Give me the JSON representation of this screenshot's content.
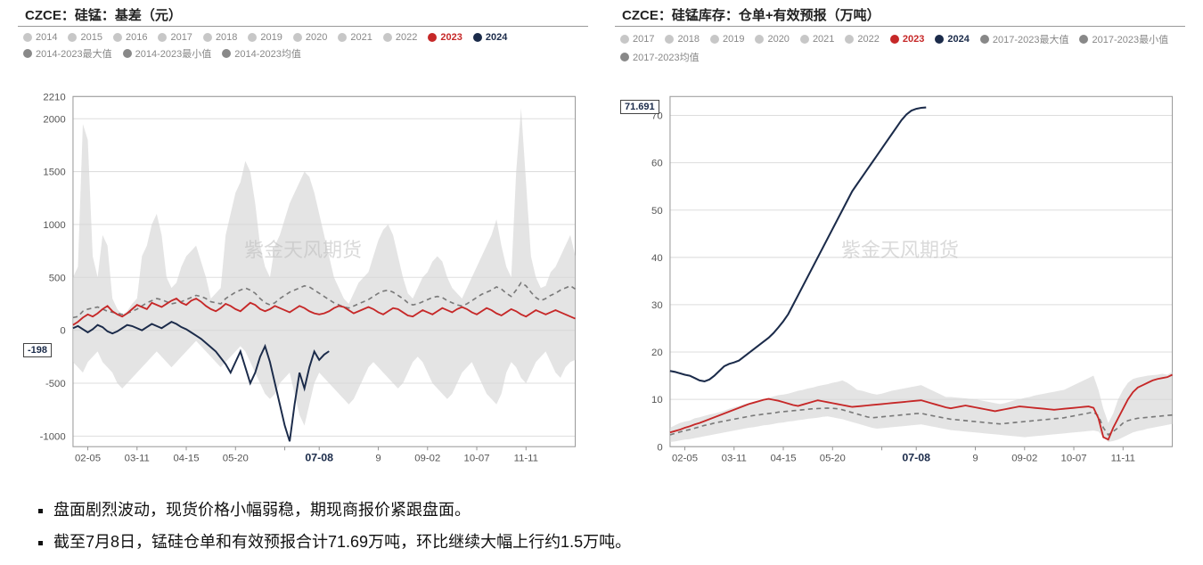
{
  "watermark": "紫金天风期货",
  "bullets": [
    "盘面剧烈波动，现货价格小幅弱稳，期现商报价紧跟盘面。",
    "截至7月8日，锰硅仓单和有效预报合计71.69万吨，环比继续大幅上行约1.5万吨。"
  ],
  "chart_left": {
    "title": "CZCE：硅锰：基差（元）",
    "type": "line",
    "background_color": "#ffffff",
    "grid_color": "#dddddd",
    "axis_color": "#999999",
    "tick_fontsize": 11,
    "ylim": [
      -1100,
      2210
    ],
    "yticks": [
      -1000,
      -500,
      0,
      500,
      1000,
      1500,
      2000,
      2210
    ],
    "xticks_idx": [
      3,
      13,
      23,
      33,
      43,
      50,
      62,
      72,
      82,
      92
    ],
    "xtick_labels": [
      "02-05",
      "03-11",
      "04-15",
      "05-20",
      "",
      "07-08",
      "9",
      "09-02",
      "10-07",
      "11-11"
    ],
    "xtick_bold_idx": 5,
    "legend_inactive_color": "#c7c7c7",
    "legend": [
      {
        "label": "2014",
        "color": "#c7c7c7",
        "active": false
      },
      {
        "label": "2015",
        "color": "#c7c7c7",
        "active": false
      },
      {
        "label": "2016",
        "color": "#c7c7c7",
        "active": false
      },
      {
        "label": "2017",
        "color": "#c7c7c7",
        "active": false
      },
      {
        "label": "2018",
        "color": "#c7c7c7",
        "active": false
      },
      {
        "label": "2019",
        "color": "#c7c7c7",
        "active": false
      },
      {
        "label": "2020",
        "color": "#c7c7c7",
        "active": false
      },
      {
        "label": "2021",
        "color": "#c7c7c7",
        "active": false
      },
      {
        "label": "2022",
        "color": "#c7c7c7",
        "active": false
      },
      {
        "label": "2023",
        "color": "#c62828",
        "active": true
      },
      {
        "label": "2024",
        "color": "#1b2b4a",
        "active": true
      },
      {
        "label": "2014-2023最大值",
        "color": "#888888",
        "active": false
      },
      {
        "label": "2014-2023最小值",
        "color": "#888888",
        "active": false
      },
      {
        "label": "2014-2023均值",
        "color": "#888888",
        "active": false
      }
    ],
    "callout_left": {
      "value": "-198",
      "y": -198
    },
    "n_points": 103,
    "band": {
      "fill": "#d6d6d6",
      "opacity": 0.65,
      "hi": [
        500,
        600,
        1950,
        1800,
        700,
        500,
        900,
        800,
        300,
        200,
        150,
        180,
        250,
        300,
        700,
        800,
        1000,
        1100,
        900,
        500,
        400,
        450,
        600,
        700,
        750,
        800,
        650,
        500,
        300,
        350,
        400,
        900,
        1100,
        1300,
        1400,
        1600,
        1500,
        1200,
        800,
        600,
        500,
        800,
        900,
        1050,
        1200,
        1300,
        1400,
        1500,
        1450,
        1300,
        1100,
        900,
        700,
        500,
        400,
        300,
        250,
        350,
        450,
        500,
        550,
        700,
        850,
        950,
        1000,
        900,
        700,
        500,
        350,
        300,
        400,
        500,
        550,
        650,
        700,
        650,
        500,
        400,
        350,
        300,
        400,
        500,
        600,
        700,
        800,
        900,
        1050,
        800,
        600,
        500,
        1500,
        2100,
        1400,
        700,
        500,
        400,
        420,
        550,
        600,
        700,
        800,
        900,
        700
      ],
      "lo": [
        -300,
        -350,
        -400,
        -300,
        -250,
        -200,
        -300,
        -350,
        -400,
        -500,
        -550,
        -500,
        -450,
        -400,
        -350,
        -300,
        -250,
        -200,
        -250,
        -300,
        -350,
        -300,
        -250,
        -200,
        -150,
        -100,
        -150,
        -200,
        -250,
        -300,
        -350,
        -300,
        -250,
        -200,
        -150,
        -200,
        -300,
        -400,
        -500,
        -600,
        -650,
        -600,
        -500,
        -450,
        -400,
        -600,
        -800,
        -900,
        -700,
        -500,
        -400,
        -450,
        -500,
        -550,
        -600,
        -650,
        -700,
        -650,
        -550,
        -450,
        -350,
        -300,
        -350,
        -400,
        -450,
        -500,
        -550,
        -500,
        -400,
        -300,
        -250,
        -300,
        -400,
        -500,
        -550,
        -600,
        -650,
        -600,
        -500,
        -400,
        -350,
        -300,
        -400,
        -500,
        -600,
        -650,
        -700,
        -600,
        -400,
        -300,
        -350,
        -450,
        -500,
        -400,
        -300,
        -250,
        -200,
        -300,
        -400,
        -450,
        -350,
        -300,
        -280
      ]
    },
    "mean_line": {
      "color": "#7a7a7a",
      "dash": "5 4",
      "width": 1.6,
      "y": [
        120,
        130,
        180,
        200,
        210,
        220,
        200,
        180,
        170,
        160,
        150,
        160,
        180,
        200,
        230,
        260,
        280,
        300,
        290,
        270,
        250,
        260,
        270,
        290,
        310,
        330,
        320,
        300,
        270,
        260,
        250,
        300,
        330,
        360,
        380,
        400,
        380,
        350,
        300,
        260,
        240,
        260,
        300,
        330,
        360,
        380,
        400,
        420,
        410,
        380,
        350,
        320,
        290,
        260,
        240,
        220,
        210,
        230,
        250,
        270,
        290,
        320,
        350,
        370,
        380,
        360,
        330,
        300,
        260,
        240,
        250,
        270,
        290,
        310,
        320,
        310,
        280,
        260,
        240,
        230,
        250,
        280,
        310,
        340,
        360,
        380,
        410,
        390,
        350,
        320,
        380,
        450,
        420,
        360,
        310,
        280,
        300,
        330,
        350,
        380,
        400,
        420,
        390
      ]
    },
    "series_2023": {
      "color": "#c62828",
      "width": 1.8,
      "y": [
        50,
        80,
        120,
        150,
        130,
        160,
        200,
        230,
        180,
        150,
        130,
        160,
        200,
        240,
        220,
        200,
        260,
        240,
        220,
        250,
        280,
        300,
        260,
        240,
        280,
        300,
        270,
        230,
        200,
        180,
        210,
        250,
        230,
        200,
        180,
        220,
        260,
        240,
        200,
        180,
        200,
        230,
        210,
        190,
        170,
        200,
        230,
        210,
        180,
        160,
        150,
        160,
        180,
        210,
        230,
        220,
        190,
        160,
        180,
        200,
        220,
        200,
        170,
        150,
        180,
        210,
        200,
        170,
        140,
        130,
        160,
        190,
        170,
        150,
        180,
        210,
        190,
        170,
        200,
        220,
        200,
        170,
        150,
        180,
        210,
        190,
        160,
        140,
        170,
        200,
        180,
        150,
        130,
        160,
        190,
        170,
        150,
        170,
        190,
        170,
        150,
        130,
        110
      ]
    },
    "series_2024": {
      "color": "#1b2b4a",
      "width": 1.9,
      "y": [
        20,
        40,
        10,
        -20,
        10,
        50,
        30,
        -10,
        -30,
        -10,
        20,
        50,
        40,
        20,
        0,
        30,
        60,
        40,
        20,
        50,
        80,
        60,
        30,
        10,
        -20,
        -50,
        -80,
        -120,
        -160,
        -200,
        -260,
        -320,
        -400,
        -300,
        -200,
        -350,
        -500,
        -400,
        -250,
        -150,
        -300,
        -500,
        -700,
        -900,
        -1050,
        -700,
        -400,
        -550,
        -350,
        -200,
        -280,
        -230,
        -198
      ],
      "last_idx": 52
    }
  },
  "chart_right": {
    "title": "CZCE：硅锰库存：仓单+有效预报（万吨）",
    "type": "line",
    "background_color": "#ffffff",
    "grid_color": "#dddddd",
    "axis_color": "#999999",
    "tick_fontsize": 11,
    "ylim": [
      0,
      74
    ],
    "yticks": [
      0,
      10,
      20,
      30,
      40,
      50,
      60,
      70
    ],
    "xticks_idx": [
      3,
      13,
      23,
      33,
      43,
      50,
      62,
      72,
      82,
      92
    ],
    "xtick_labels": [
      "02-05",
      "03-11",
      "04-15",
      "05-20",
      "",
      "07-08",
      "9",
      "09-02",
      "10-07",
      "11-11"
    ],
    "xtick_bold_idx": 5,
    "legend_inactive_color": "#c7c7c7",
    "legend": [
      {
        "label": "2017",
        "color": "#c7c7c7",
        "active": false
      },
      {
        "label": "2018",
        "color": "#c7c7c7",
        "active": false
      },
      {
        "label": "2019",
        "color": "#c7c7c7",
        "active": false
      },
      {
        "label": "2020",
        "color": "#c7c7c7",
        "active": false
      },
      {
        "label": "2021",
        "color": "#c7c7c7",
        "active": false
      },
      {
        "label": "2022",
        "color": "#c7c7c7",
        "active": false
      },
      {
        "label": "2023",
        "color": "#c62828",
        "active": true
      },
      {
        "label": "2024",
        "color": "#1b2b4a",
        "active": true
      },
      {
        "label": "2017-2023最大值",
        "color": "#888888",
        "active": false
      },
      {
        "label": "2017-2023最小值",
        "color": "#888888",
        "active": false
      },
      {
        "label": "2017-2023均值",
        "color": "#888888",
        "active": false
      }
    ],
    "callout_left": {
      "value": "71.691",
      "y": 71.691
    },
    "n_points": 103,
    "band": {
      "fill": "#d6d6d6",
      "opacity": 0.65,
      "hi": [
        4,
        4.5,
        5,
        5.3,
        5.5,
        6,
        6.2,
        6.5,
        6.8,
        7,
        7.3,
        7.6,
        8,
        8.3,
        8.6,
        9,
        9.2,
        9.5,
        9.8,
        10,
        10.3,
        10.6,
        10.9,
        11,
        11.2,
        11.5,
        11.8,
        12,
        12.3,
        12.5,
        12.8,
        13,
        13.2,
        13.5,
        13.7,
        14,
        13.5,
        12.8,
        12,
        11.8,
        11.5,
        11.2,
        11,
        11.2,
        11.5,
        11.8,
        12,
        12.2,
        12.4,
        12.6,
        12.8,
        13,
        12.5,
        12,
        11.5,
        11,
        10.5,
        10.5,
        10.4,
        10.3,
        10.2,
        10.1,
        10,
        9.8,
        9.6,
        9.4,
        9.2,
        9,
        9.2,
        9.5,
        9.8,
        10,
        10.3,
        10.5,
        10.8,
        11,
        11.2,
        11.4,
        11.6,
        11.8,
        12,
        12.5,
        13,
        13.5,
        14,
        14.5,
        15,
        12,
        8,
        5,
        7,
        10,
        12,
        13.5,
        14.3,
        14.6,
        14.8,
        15,
        15.1,
        15.2,
        15.4,
        15.2,
        15.8
      ],
      "lo": [
        1,
        1.1,
        1.3,
        1.5,
        1.6,
        1.8,
        2,
        2.2,
        2.4,
        2.6,
        2.8,
        3,
        3.2,
        3.4,
        3.6,
        3.8,
        4,
        4.1,
        4.3,
        4.5,
        4.6,
        4.8,
        5,
        5.1,
        5.3,
        5.4,
        5.6,
        5.7,
        5.9,
        6,
        6.1,
        6.3,
        6.4,
        6.2,
        6,
        5.8,
        5.5,
        5.2,
        4.9,
        4.6,
        4.3,
        4,
        3.8,
        3.9,
        4,
        4.1,
        4.2,
        4.3,
        4.4,
        4.5,
        4.6,
        4.7,
        4.5,
        4.3,
        4.1,
        3.9,
        3.7,
        3.5,
        3.4,
        3.3,
        3.2,
        3.1,
        3,
        2.9,
        2.8,
        2.7,
        2.6,
        2.5,
        2.4,
        2.3,
        2.2,
        2.1,
        2,
        2.1,
        2.2,
        2.3,
        2.4,
        2.5,
        2.6,
        2.7,
        2.8,
        2.9,
        3,
        3.1,
        3.2,
        3.3,
        3.4,
        3.2,
        2,
        1,
        1.2,
        1.5,
        2,
        2.5,
        3,
        3.3,
        3.5,
        3.8,
        4,
        4.2,
        4.4,
        4.6,
        4.8
      ]
    },
    "mean_line": {
      "color": "#7a7a7a",
      "dash": "5 4",
      "width": 1.6,
      "y": [
        2.5,
        2.8,
        3.1,
        3.4,
        3.6,
        3.9,
        4.2,
        4.5,
        4.7,
        5,
        5.2,
        5.4,
        5.6,
        5.8,
        6,
        6.2,
        6.4,
        6.6,
        6.7,
        6.9,
        7,
        7.1,
        7.3,
        7.4,
        7.5,
        7.6,
        7.7,
        7.8,
        7.9,
        8,
        8.05,
        8.1,
        8.15,
        8.1,
        8,
        7.8,
        7.5,
        7.2,
        6.9,
        6.6,
        6.3,
        6.1,
        6.2,
        6.3,
        6.4,
        6.5,
        6.6,
        6.7,
        6.8,
        6.9,
        7,
        7.05,
        6.8,
        6.6,
        6.4,
        6.2,
        6,
        5.8,
        5.7,
        5.6,
        5.5,
        5.4,
        5.3,
        5.2,
        5.1,
        5,
        4.9,
        4.8,
        4.9,
        5,
        5.1,
        5.2,
        5.3,
        5.4,
        5.5,
        5.6,
        5.7,
        5.8,
        5.9,
        6,
        6.1,
        6.3,
        6.5,
        6.7,
        6.9,
        7.1,
        7.3,
        6.5,
        4,
        2.5,
        3.2,
        4,
        5,
        5.5,
        5.8,
        6,
        6.1,
        6.2,
        6.3,
        6.4,
        6.5,
        6.6,
        6.7
      ]
    },
    "series_2023": {
      "color": "#c62828",
      "width": 1.8,
      "y": [
        3,
        3.3,
        3.6,
        4,
        4.3,
        4.7,
        5,
        5.4,
        5.8,
        6.2,
        6.6,
        7,
        7.4,
        7.8,
        8.2,
        8.6,
        9,
        9.3,
        9.6,
        9.9,
        10.1,
        9.9,
        9.7,
        9.4,
        9.1,
        8.8,
        8.6,
        8.9,
        9.2,
        9.5,
        9.8,
        9.6,
        9.4,
        9.2,
        9,
        8.8,
        8.6,
        8.4,
        8.5,
        8.6,
        8.7,
        8.8,
        8.9,
        9,
        9.1,
        9.2,
        9.3,
        9.4,
        9.5,
        9.6,
        9.7,
        9.8,
        9.5,
        9.2,
        8.9,
        8.6,
        8.3,
        8.1,
        8.3,
        8.5,
        8.7,
        8.5,
        8.3,
        8.1,
        7.9,
        7.7,
        7.5,
        7.7,
        7.9,
        8.1,
        8.3,
        8.5,
        8.4,
        8.3,
        8.2,
        8.1,
        8,
        7.9,
        7.8,
        7.9,
        8,
        8.1,
        8.2,
        8.3,
        8.4,
        8.5,
        8.2,
        6,
        2,
        1.5,
        4,
        6,
        8,
        10,
        11.5,
        12.5,
        13,
        13.5,
        14,
        14.3,
        14.5,
        14.7,
        15.2
      ]
    },
    "series_2024": {
      "color": "#1b2b4a",
      "width": 2.0,
      "y": [
        16,
        15.8,
        15.5,
        15.2,
        15,
        14.5,
        14,
        13.8,
        14.2,
        15,
        16,
        17,
        17.5,
        17.8,
        18.2,
        19,
        19.8,
        20.6,
        21.4,
        22.2,
        23,
        24,
        25.2,
        26.5,
        28,
        30,
        32,
        34,
        36,
        38,
        40,
        42,
        44,
        46,
        48,
        50,
        52,
        54,
        55.5,
        57,
        58.5,
        60,
        61.5,
        63,
        64.5,
        66,
        67.5,
        69,
        70.2,
        71,
        71.4,
        71.6,
        71.691
      ],
      "last_idx": 52
    }
  }
}
